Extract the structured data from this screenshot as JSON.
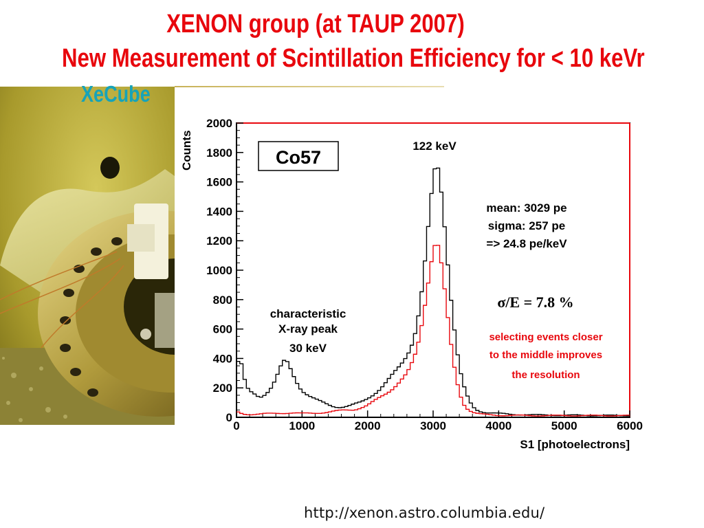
{
  "slide": {
    "title_line1": "XENON group (at TAUP 2007)",
    "title_line2": "New Measurement of  Scintillation Efficiency for < 10 keVr",
    "subtitle": "XeCube",
    "url": "http://xenon.astro.columbia.edu/"
  },
  "colors": {
    "title": "#e8070d",
    "subtitle": "#17a3b8",
    "series_all": "#000000",
    "series_selected": "#e8070d"
  },
  "chart_data": {
    "type": "line",
    "xlabel": "S1 [photoelectrons]",
    "ylabel": "Counts",
    "xlim": [
      0,
      6000
    ],
    "ylim": [
      0,
      2000
    ],
    "xticks": [
      0,
      1000,
      2000,
      3000,
      4000,
      5000,
      6000
    ],
    "yticks": [
      0,
      200,
      400,
      600,
      800,
      1000,
      1200,
      1400,
      1600,
      1800,
      2000
    ],
    "grid": false,
    "legend_box": "Co57",
    "annotations": {
      "peak_main": "122 keV",
      "xray_line1": "characteristic",
      "xray_line2": "X-ray peak",
      "xray_line3": "30 keV",
      "stats_line1": "mean: 3029 pe",
      "stats_line2": "sigma: 257 pe",
      "stats_line3": "=> 24.8 pe/keV",
      "resolution": "σ/E = 7.8 %",
      "note_line1": "selecting events closer",
      "note_line2": "to the middle improves",
      "note_line3": "the resolution"
    },
    "series": [
      {
        "x": [
          0,
          50,
          100,
          150,
          200,
          250,
          300,
          350,
          400,
          450,
          500,
          550,
          600,
          650,
          700,
          750,
          800,
          850,
          900,
          950,
          1000,
          1100,
          1200,
          1300,
          1400,
          1500,
          1600,
          1700,
          1800,
          1900,
          2000,
          2100,
          2200,
          2300,
          2400,
          2500,
          2600,
          2650,
          2700,
          2750,
          2800,
          2850,
          2900,
          2950,
          3000,
          3050,
          3100,
          3150,
          3200,
          3250,
          3300,
          3350,
          3400,
          3450,
          3500,
          3550,
          3600,
          3650,
          3700,
          3800,
          3900,
          4000,
          4200,
          4400,
          4600,
          4800,
          5000,
          5200,
          5400,
          5600,
          5800,
          6000
        ],
        "values": [
          340,
          420,
          290,
          200,
          170,
          160,
          150,
          140,
          150,
          170,
          190,
          220,
          260,
          310,
          360,
          380,
          350,
          300,
          260,
          220,
          190,
          150,
          120,
          100,
          85,
          75,
          72,
          75,
          85,
          100,
          130,
          165,
          200,
          240,
          290,
          350,
          430,
          480,
          540,
          630,
          760,
          930,
          1150,
          1380,
          1600,
          1740,
          1650,
          1450,
          1200,
          930,
          700,
          500,
          340,
          230,
          160,
          110,
          75,
          55,
          45,
          35,
          30,
          25,
          20,
          18,
          16,
          15,
          14,
          14,
          13,
          13,
          12,
          12
        ]
      },
      {
        "x": [
          0,
          100,
          200,
          300,
          400,
          500,
          600,
          700,
          800,
          900,
          1000,
          1200,
          1400,
          1600,
          1800,
          2000,
          2100,
          2200,
          2300,
          2400,
          2500,
          2600,
          2650,
          2700,
          2750,
          2800,
          2850,
          2900,
          2950,
          3000,
          3050,
          3100,
          3150,
          3200,
          3250,
          3300,
          3350,
          3400,
          3450,
          3500,
          3600,
          3700,
          3800,
          4000,
          4500,
          5000,
          5500,
          6000
        ],
        "values": [
          40,
          25,
          20,
          20,
          22,
          25,
          28,
          30,
          30,
          28,
          25,
          30,
          35,
          45,
          55,
          80,
          105,
          135,
          170,
          210,
          250,
          290,
          330,
          380,
          450,
          560,
          700,
          860,
          1020,
          1150,
          1220,
          1120,
          950,
          750,
          560,
          400,
          270,
          180,
          110,
          70,
          35,
          22,
          18,
          14,
          12,
          12,
          12,
          12
        ]
      }
    ]
  }
}
